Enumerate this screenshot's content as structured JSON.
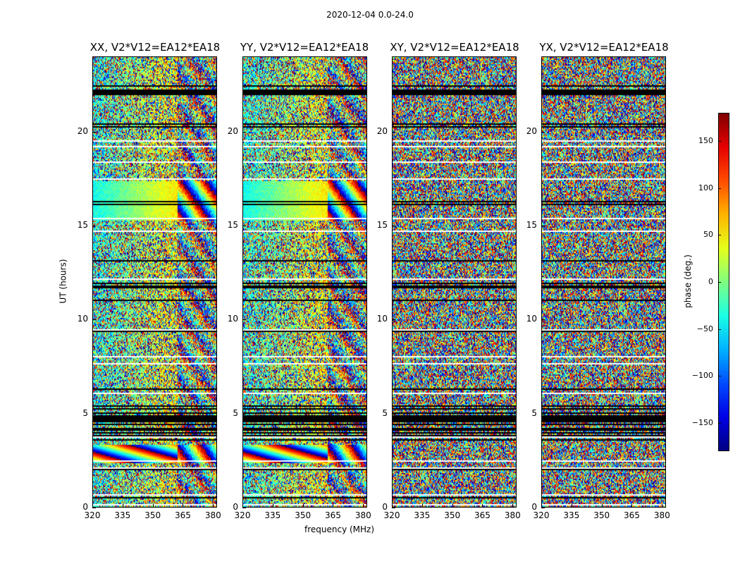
{
  "chart_data": {
    "type": "heatmap",
    "suptitle": "2020-12-04 0.0-24.0",
    "panels": [
      {
        "title": "XX, V2*V12=EA12*EA18",
        "coherent": true
      },
      {
        "title": "YY, V2*V12=EA12*EA18",
        "coherent": true
      },
      {
        "title": "XY, V2*V12=EA12*EA18",
        "coherent": false
      },
      {
        "title": "YX, V2*V12=EA12*EA18",
        "coherent": false
      }
    ],
    "xlabel": "frequency (MHz)",
    "ylabel": "UT (hours)",
    "x_ticks": [
      "320",
      "335",
      "350",
      "365",
      "380"
    ],
    "x_range": [
      320,
      382
    ],
    "y_ticks": [
      "0",
      "5",
      "10",
      "15",
      "20"
    ],
    "y_range": [
      0,
      24
    ],
    "colorbar": {
      "label": "phase (deg.)",
      "ticks": [
        "−150",
        "−100",
        "−50",
        "0",
        "50",
        "100",
        "150"
      ],
      "range": [
        -180,
        180
      ],
      "colormap": "jet"
    }
  }
}
